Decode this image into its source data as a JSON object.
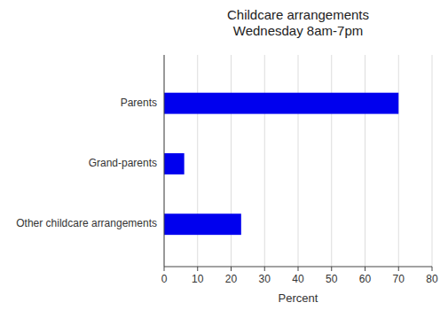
{
  "chart_data": {
    "type": "bar",
    "orientation": "horizontal",
    "title": "Childcare arrangements\nWednesday 8am-7pm",
    "categories": [
      "Other childcare arrangements",
      "Grand-parents",
      "Parents"
    ],
    "values": [
      23,
      6,
      70
    ],
    "color": "#0000EE",
    "xlabel": "Percent",
    "xlim": [
      0,
      80
    ],
    "xticks": [
      0,
      10,
      20,
      30,
      40,
      50,
      60,
      70,
      80
    ],
    "grid": true
  }
}
